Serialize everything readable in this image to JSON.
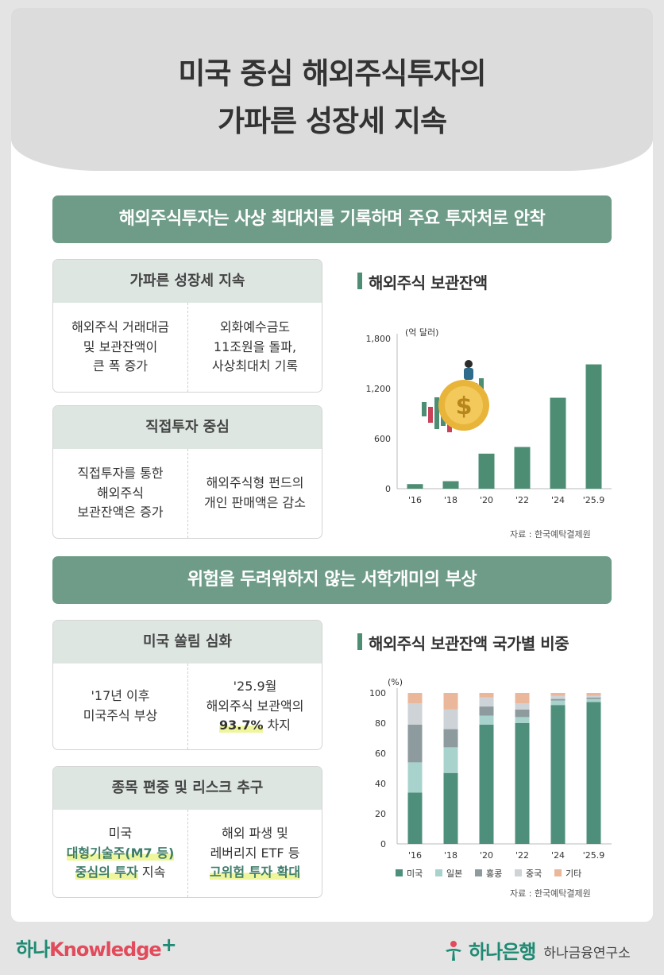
{
  "header": {
    "title_line1": "미국 중심 해외주식투자의",
    "title_line2": "가파른 성장세 지속"
  },
  "section1": {
    "banner": "해외주식투자는 사상 최대치를 기록하며 주요 투자처로 안착",
    "box1": {
      "heading": "가파른 성장세 지속",
      "left": [
        "해외주식 거래대금",
        "및 보관잔액이",
        "큰 폭 증가"
      ],
      "right": [
        "외화예수금도",
        "11조원을 돌파,",
        "사상최대치 기록"
      ]
    },
    "box2": {
      "heading": "직접투자 중심",
      "left": [
        "직접투자를 통한",
        "해외주식",
        "보관잔액은 증가"
      ],
      "right": [
        "해외주식형 펀드의",
        "개인 판매액은 감소"
      ]
    }
  },
  "section2": {
    "banner": "위험을 두려워하지 않는 서학개미의 부상",
    "box1": {
      "heading": "미국 쏠림 심화",
      "left": [
        "'17년 이후",
        "미국주식 부상"
      ],
      "right_l1": "'25.9월",
      "right_l2": "해외주식 보관액의",
      "right_hl": "93.7%",
      "right_tail": " 차지"
    },
    "box2": {
      "heading": "종목 편중 및 리스크 추구",
      "left_l1": "미국",
      "left_hl1": "대형기술주(M7 등)",
      "left_hl2": "중심의 투자",
      "left_tail": " 지속",
      "right_l1": "해외 파생 및",
      "right_l2": "레버리지 ETF 등",
      "right_hl": "고위험 투자 확대"
    }
  },
  "chart_data": [
    {
      "type": "bar",
      "title": "해외주식 보관잔액",
      "unit_label": "(억 달러)",
      "categories": [
        "'16",
        "'18",
        "'20",
        "'22",
        "'24",
        "'25.9"
      ],
      "values": [
        55,
        90,
        420,
        500,
        1090,
        1490
      ],
      "ylim": [
        0,
        1800
      ],
      "yticks": [
        0,
        600,
        "1,200",
        "1,800"
      ],
      "ytick_values": [
        0,
        600,
        1200,
        1800
      ],
      "source": "자료 : 한국예탁결제원",
      "color": "#4c8d74"
    },
    {
      "type": "bar",
      "stacked": true,
      "title": "해외주식 보관잔액 국가별 비중",
      "unit_label": "(%)",
      "categories": [
        "'16",
        "'18",
        "'20",
        "'22",
        "'24",
        "'25.9"
      ],
      "ylim": [
        0,
        100
      ],
      "yticks": [
        0,
        20,
        40,
        60,
        80,
        100
      ],
      "series": [
        {
          "name": "미국",
          "values": [
            34,
            47,
            79,
            80,
            92,
            94
          ],
          "color": "#4e8f7c"
        },
        {
          "name": "일본",
          "values": [
            20,
            17,
            6,
            4,
            3,
            2
          ],
          "color": "#a8d3cc"
        },
        {
          "name": "홍콩",
          "values": [
            25,
            12,
            6,
            5,
            1,
            1
          ],
          "color": "#8d9a9e"
        },
        {
          "name": "중국",
          "values": [
            14,
            13,
            6,
            4,
            2,
            1
          ],
          "color": "#cdd3d6"
        },
        {
          "name": "기타",
          "values": [
            7,
            11,
            3,
            7,
            2,
            2
          ],
          "color": "#eab79a"
        }
      ],
      "legend_position": "bottom",
      "source": "자료 : 한국예탁결제원"
    }
  ],
  "footer": {
    "left_a": "하나",
    "left_b": "Knowledge",
    "left_plus": "+",
    "bank": "하나은행",
    "institute": "하나금융연구소"
  }
}
